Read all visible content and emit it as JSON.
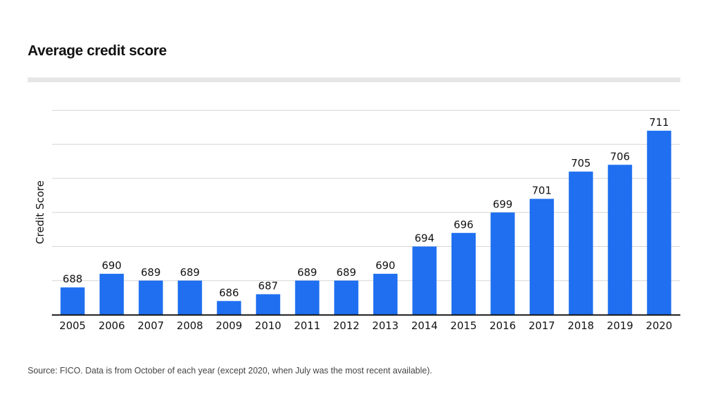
{
  "title": "Average credit score",
  "source": "Source: FICO. Data is from October of each year (except 2020, when July was the most recent available).",
  "colors": {
    "bar": "#1f6ff0",
    "grid": "#d5d5d5",
    "axis": "#111111",
    "text": "#111111"
  },
  "chart_data": {
    "type": "bar",
    "categories": [
      "2005",
      "2006",
      "2007",
      "2008",
      "2009",
      "2010",
      "2011",
      "2012",
      "2013",
      "2014",
      "2015",
      "2016",
      "2017",
      "2018",
      "2019",
      "2020"
    ],
    "values": [
      688,
      690,
      689,
      689,
      686,
      687,
      689,
      689,
      690,
      694,
      696,
      699,
      701,
      705,
      706,
      711
    ],
    "xlabel": "",
    "ylabel": "Credit Score",
    "ylim": [
      684,
      714
    ],
    "grid": true,
    "data_labels": true
  }
}
